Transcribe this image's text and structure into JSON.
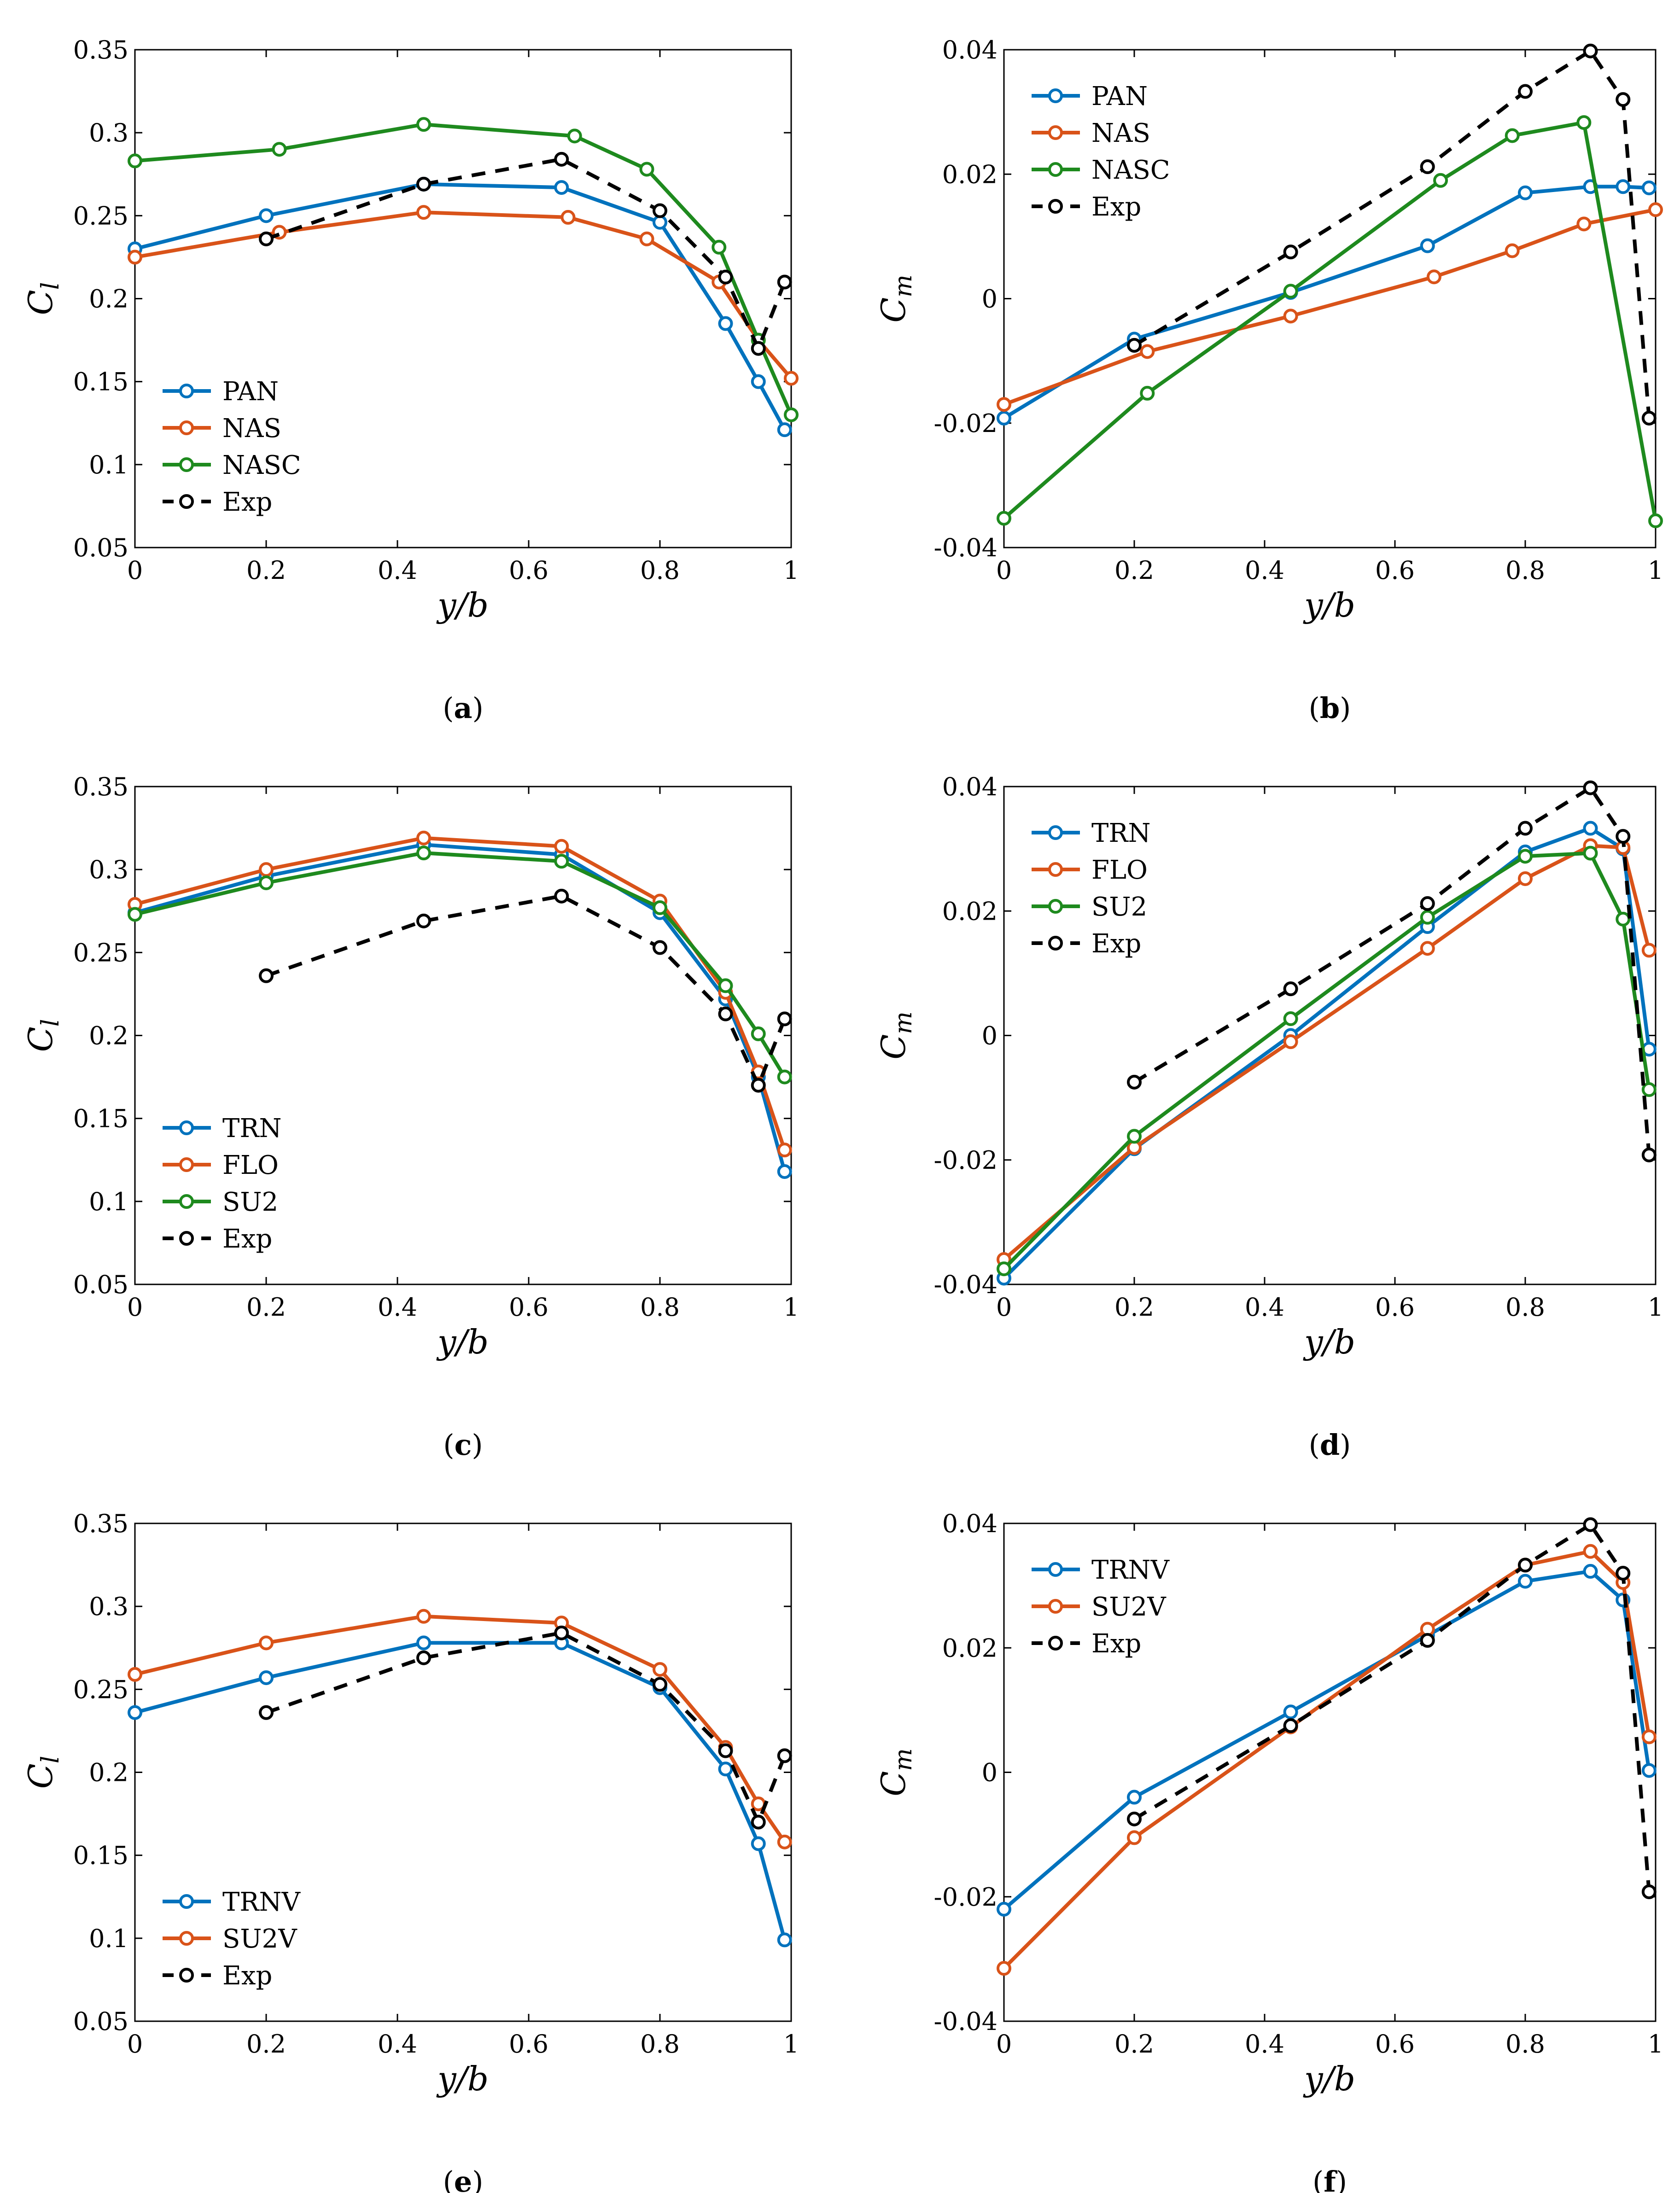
{
  "figure": {
    "series_styles": {
      "PAN": {
        "color": "#0072BD",
        "dash": false
      },
      "NAS": {
        "color": "#D95319",
        "dash": false
      },
      "NASC": {
        "color": "#1E8A1E",
        "dash": false
      },
      "TRN": {
        "color": "#0072BD",
        "dash": false
      },
      "FLO": {
        "color": "#D95319",
        "dash": false
      },
      "SU2": {
        "color": "#1E8A1E",
        "dash": false
      },
      "TRNV": {
        "color": "#0072BD",
        "dash": false
      },
      "SU2V": {
        "color": "#D95319",
        "dash": false
      },
      "Exp": {
        "color": "#000000",
        "dash": true
      }
    }
  },
  "chart_data": [
    {
      "id": "a",
      "caption": "a",
      "type": "line",
      "xlabel": "y/b",
      "ylabel": "Cl",
      "xlim": [
        0,
        1
      ],
      "ylim": [
        0.05,
        0.35
      ],
      "xticks": [
        "0",
        "0.2",
        "0.4",
        "0.6",
        "0.8",
        "1"
      ],
      "yticks": [
        "0.05",
        "0.1",
        "0.15",
        "0.2",
        "0.25",
        "0.3",
        "0.35"
      ],
      "xtick_values": [
        0,
        0.2,
        0.4,
        0.6,
        0.8,
        1
      ],
      "ytick_values": [
        0.05,
        0.1,
        0.15,
        0.2,
        0.25,
        0.3,
        0.35
      ],
      "legend_position": "bottom-left",
      "series": [
        {
          "name": "PAN",
          "x": [
            0,
            0.2,
            0.44,
            0.65,
            0.8,
            0.9,
            0.95,
            0.99
          ],
          "y": [
            0.23,
            0.25,
            0.269,
            0.267,
            0.246,
            0.185,
            0.15,
            0.121
          ]
        },
        {
          "name": "NAS",
          "x": [
            0,
            0.22,
            0.44,
            0.66,
            0.78,
            0.89,
            0.95,
            1.0
          ],
          "y": [
            0.225,
            0.24,
            0.252,
            0.249,
            0.236,
            0.21,
            0.175,
            0.152
          ]
        },
        {
          "name": "NASC",
          "x": [
            0,
            0.22,
            0.44,
            0.67,
            0.78,
            0.89,
            0.95,
            1.0
          ],
          "y": [
            0.283,
            0.29,
            0.305,
            0.298,
            0.278,
            0.231,
            0.175,
            0.13
          ]
        },
        {
          "name": "Exp",
          "x": [
            0.2,
            0.44,
            0.65,
            0.8,
            0.9,
            0.95,
            0.99
          ],
          "y": [
            0.236,
            0.269,
            0.284,
            0.253,
            0.213,
            0.17,
            0.21
          ]
        }
      ]
    },
    {
      "id": "b",
      "caption": "b",
      "type": "line",
      "xlabel": "y/b",
      "ylabel": "Cm",
      "xlim": [
        0,
        1
      ],
      "ylim": [
        -0.04,
        0.04
      ],
      "xticks": [
        "0",
        "0.2",
        "0.4",
        "0.6",
        "0.8",
        "1"
      ],
      "yticks": [
        "-0.04",
        "-0.02",
        "0",
        "0.02",
        "0.04"
      ],
      "xtick_values": [
        0,
        0.2,
        0.4,
        0.6,
        0.8,
        1
      ],
      "ytick_values": [
        -0.04,
        -0.02,
        0,
        0.02,
        0.04
      ],
      "legend_position": "top-left",
      "series": [
        {
          "name": "PAN",
          "x": [
            0,
            0.2,
            0.44,
            0.65,
            0.8,
            0.9,
            0.95,
            0.99
          ],
          "y": [
            -0.0192,
            -0.0065,
            0.001,
            0.0085,
            0.017,
            0.018,
            0.018,
            0.0178
          ]
        },
        {
          "name": "NAS",
          "x": [
            0,
            0.22,
            0.44,
            0.66,
            0.78,
            0.89,
            1.0
          ],
          "y": [
            -0.017,
            -0.0085,
            -0.0028,
            0.0035,
            0.0077,
            0.012,
            0.0143
          ]
        },
        {
          "name": "NASC",
          "x": [
            0,
            0.22,
            0.44,
            0.67,
            0.78,
            0.89,
            1.0
          ],
          "y": [
            -0.0353,
            -0.0152,
            0.0012,
            0.019,
            0.0262,
            0.0283,
            -0.0357
          ]
        },
        {
          "name": "Exp",
          "x": [
            0.2,
            0.44,
            0.65,
            0.8,
            0.9,
            0.95,
            0.99
          ],
          "y": [
            -0.0075,
            0.0075,
            0.0212,
            0.0333,
            0.0398,
            0.032,
            -0.0192
          ]
        }
      ]
    },
    {
      "id": "c",
      "caption": "c",
      "type": "line",
      "xlabel": "y/b",
      "ylabel": "Cl",
      "xlim": [
        0,
        1
      ],
      "ylim": [
        0.05,
        0.35
      ],
      "xticks": [
        "0",
        "0.2",
        "0.4",
        "0.6",
        "0.8",
        "1"
      ],
      "yticks": [
        "0.05",
        "0.1",
        "0.15",
        "0.2",
        "0.25",
        "0.3",
        "0.35"
      ],
      "xtick_values": [
        0,
        0.2,
        0.4,
        0.6,
        0.8,
        1
      ],
      "ytick_values": [
        0.05,
        0.1,
        0.15,
        0.2,
        0.25,
        0.3,
        0.35
      ],
      "legend_position": "bottom-left",
      "series": [
        {
          "name": "TRN",
          "x": [
            0,
            0.2,
            0.44,
            0.65,
            0.8,
            0.9,
            0.95,
            0.99
          ],
          "y": [
            0.274,
            0.296,
            0.315,
            0.309,
            0.274,
            0.222,
            0.175,
            0.118
          ]
        },
        {
          "name": "FLO",
          "x": [
            0,
            0.2,
            0.44,
            0.65,
            0.8,
            0.9,
            0.95,
            0.99
          ],
          "y": [
            0.279,
            0.3,
            0.319,
            0.314,
            0.281,
            0.226,
            0.178,
            0.131
          ]
        },
        {
          "name": "SU2",
          "x": [
            0,
            0.2,
            0.44,
            0.65,
            0.8,
            0.9,
            0.95,
            0.99
          ],
          "y": [
            0.273,
            0.292,
            0.31,
            0.305,
            0.277,
            0.23,
            0.201,
            0.175
          ]
        },
        {
          "name": "Exp",
          "x": [
            0.2,
            0.44,
            0.65,
            0.8,
            0.9,
            0.95,
            0.99
          ],
          "y": [
            0.236,
            0.269,
            0.284,
            0.253,
            0.213,
            0.17,
            0.21
          ]
        }
      ]
    },
    {
      "id": "d",
      "caption": "d",
      "type": "line",
      "xlabel": "y/b",
      "ylabel": "Cm",
      "xlim": [
        0,
        1
      ],
      "ylim": [
        -0.04,
        0.04
      ],
      "xticks": [
        "0",
        "0.2",
        "0.4",
        "0.6",
        "0.8",
        "1"
      ],
      "yticks": [
        "-0.04",
        "-0.02",
        "0",
        "0.02",
        "0.04"
      ],
      "xtick_values": [
        0,
        0.2,
        0.4,
        0.6,
        0.8,
        1
      ],
      "ytick_values": [
        -0.04,
        -0.02,
        0,
        0.02,
        0.04
      ],
      "legend_position": "top-left",
      "series": [
        {
          "name": "TRN",
          "x": [
            0,
            0.2,
            0.44,
            0.65,
            0.8,
            0.9,
            0.95,
            0.99
          ],
          "y": [
            -0.039,
            -0.0182,
            0.0,
            0.0175,
            0.0295,
            0.0333,
            0.03,
            -0.0022
          ]
        },
        {
          "name": "FLO",
          "x": [
            0,
            0.2,
            0.44,
            0.65,
            0.8,
            0.9,
            0.95,
            0.99
          ],
          "y": [
            -0.036,
            -0.018,
            -0.001,
            0.014,
            0.0252,
            0.0305,
            0.0302,
            0.0137
          ]
        },
        {
          "name": "SU2",
          "x": [
            0,
            0.2,
            0.44,
            0.65,
            0.8,
            0.9,
            0.95,
            0.99
          ],
          "y": [
            -0.0375,
            -0.0162,
            0.0027,
            0.019,
            0.0288,
            0.0293,
            0.0187,
            -0.0087
          ]
        },
        {
          "name": "Exp",
          "x": [
            0.2,
            0.44,
            0.65,
            0.8,
            0.9,
            0.95,
            0.99
          ],
          "y": [
            -0.0075,
            0.0075,
            0.0212,
            0.0333,
            0.0398,
            0.032,
            -0.0192
          ]
        }
      ]
    },
    {
      "id": "e",
      "caption": "e",
      "type": "line",
      "xlabel": "y/b",
      "ylabel": "Cl",
      "xlim": [
        0,
        1
      ],
      "ylim": [
        0.05,
        0.35
      ],
      "xticks": [
        "0",
        "0.2",
        "0.4",
        "0.6",
        "0.8",
        "1"
      ],
      "yticks": [
        "0.05",
        "0.1",
        "0.15",
        "0.2",
        "0.25",
        "0.3",
        "0.35"
      ],
      "xtick_values": [
        0,
        0.2,
        0.4,
        0.6,
        0.8,
        1
      ],
      "ytick_values": [
        0.05,
        0.1,
        0.15,
        0.2,
        0.25,
        0.3,
        0.35
      ],
      "legend_position": "bottom-left",
      "series": [
        {
          "name": "TRNV",
          "x": [
            0,
            0.2,
            0.44,
            0.65,
            0.8,
            0.9,
            0.95,
            0.99
          ],
          "y": [
            0.236,
            0.257,
            0.278,
            0.278,
            0.251,
            0.202,
            0.157,
            0.099
          ]
        },
        {
          "name": "SU2V",
          "x": [
            0,
            0.2,
            0.44,
            0.65,
            0.8,
            0.9,
            0.95,
            0.99
          ],
          "y": [
            0.259,
            0.278,
            0.294,
            0.29,
            0.262,
            0.215,
            0.181,
            0.158
          ]
        },
        {
          "name": "Exp",
          "x": [
            0.2,
            0.44,
            0.65,
            0.8,
            0.9,
            0.95,
            0.99
          ],
          "y": [
            0.236,
            0.269,
            0.284,
            0.253,
            0.213,
            0.17,
            0.21
          ]
        }
      ]
    },
    {
      "id": "f",
      "caption": "f",
      "type": "line",
      "xlabel": "y/b",
      "ylabel": "Cm",
      "xlim": [
        0,
        1
      ],
      "ylim": [
        -0.04,
        0.04
      ],
      "xticks": [
        "0",
        "0.2",
        "0.4",
        "0.6",
        "0.8",
        "1"
      ],
      "yticks": [
        "-0.04",
        "-0.02",
        "0",
        "0.02",
        "0.04"
      ],
      "xtick_values": [
        0,
        0.2,
        0.4,
        0.6,
        0.8,
        1
      ],
      "ytick_values": [
        -0.04,
        -0.02,
        0,
        0.02,
        0.04
      ],
      "legend_position": "top-left",
      "series": [
        {
          "name": "TRNV",
          "x": [
            0,
            0.2,
            0.44,
            0.65,
            0.8,
            0.9,
            0.95,
            0.99
          ],
          "y": [
            -0.022,
            -0.004,
            0.0097,
            0.022,
            0.0307,
            0.0323,
            0.0277,
            0.0003
          ]
        },
        {
          "name": "SU2V",
          "x": [
            0,
            0.2,
            0.44,
            0.65,
            0.8,
            0.9,
            0.95,
            0.99
          ],
          "y": [
            -0.0315,
            -0.0105,
            0.0073,
            0.023,
            0.0333,
            0.0355,
            0.0305,
            0.0057
          ]
        },
        {
          "name": "Exp",
          "x": [
            0.2,
            0.44,
            0.65,
            0.8,
            0.9,
            0.95,
            0.99
          ],
          "y": [
            -0.0075,
            0.0075,
            0.0212,
            0.0333,
            0.0398,
            0.032,
            -0.0192
          ]
        }
      ]
    }
  ]
}
